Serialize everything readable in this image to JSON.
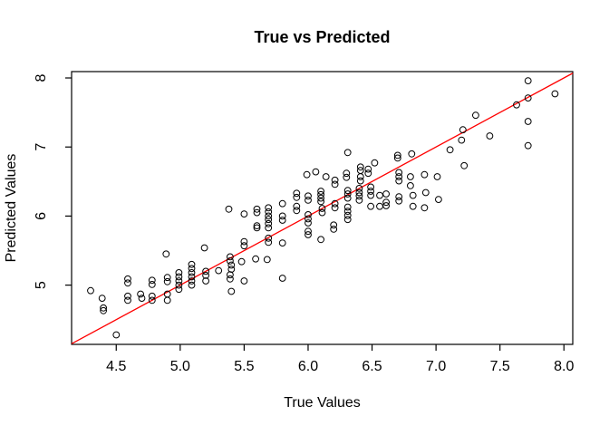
{
  "chart_data": {
    "type": "scatter",
    "title": "True vs Predicted",
    "xlabel": "True Values",
    "ylabel": "Predicted Values",
    "xlim": [
      4.151,
      8.069
    ],
    "ylim": [
      4.142,
      8.092
    ],
    "x_ticks": [
      4.5,
      5.0,
      5.5,
      6.0,
      6.5,
      7.0,
      7.5,
      8.0
    ],
    "x_tick_labels": [
      "4.5",
      "5.0",
      "5.5",
      "6.0",
      "6.5",
      "7.0",
      "7.5",
      "8.0"
    ],
    "y_ticks": [
      5,
      6,
      7,
      8
    ],
    "y_tick_labels": [
      "5",
      "6",
      "7",
      "8"
    ],
    "grid": false,
    "legend": "none",
    "marker": {
      "shape": "open-circle",
      "color": "#000000"
    },
    "reference_line": {
      "type": "identity (y = x)",
      "color": "#FF0000"
    },
    "colors": {
      "points": "#000000",
      "line": "#FF0000",
      "box": "#000000",
      "background": "#FFFFFF"
    },
    "points": [
      [
        4.3,
        4.92
      ],
      [
        4.39,
        4.81
      ],
      [
        4.4,
        4.67
      ],
      [
        4.4,
        4.63
      ],
      [
        4.5,
        4.28
      ],
      [
        4.59,
        5.09
      ],
      [
        4.59,
        5.03
      ],
      [
        4.59,
        4.84
      ],
      [
        4.59,
        4.78
      ],
      [
        4.69,
        4.87
      ],
      [
        4.7,
        4.81
      ],
      [
        4.78,
        5.07
      ],
      [
        4.78,
        5.01
      ],
      [
        4.78,
        4.84
      ],
      [
        4.78,
        4.78
      ],
      [
        4.89,
        5.45
      ],
      [
        4.9,
        5.11
      ],
      [
        4.9,
        5.05
      ],
      [
        4.9,
        4.87
      ],
      [
        4.9,
        4.78
      ],
      [
        4.99,
        5.18
      ],
      [
        4.99,
        5.12
      ],
      [
        4.99,
        5.06
      ],
      [
        4.99,
        5.0
      ],
      [
        4.99,
        4.94
      ],
      [
        5.09,
        5.3
      ],
      [
        5.09,
        5.24
      ],
      [
        5.09,
        5.18
      ],
      [
        5.09,
        5.12
      ],
      [
        5.09,
        5.06
      ],
      [
        5.09,
        5.0
      ],
      [
        5.19,
        5.54
      ],
      [
        5.2,
        5.2
      ],
      [
        5.2,
        5.14
      ],
      [
        5.2,
        5.06
      ],
      [
        5.3,
        5.21
      ],
      [
        5.39,
        5.41
      ],
      [
        5.39,
        5.35
      ],
      [
        5.4,
        5.29
      ],
      [
        5.4,
        5.23
      ],
      [
        5.39,
        5.15
      ],
      [
        5.39,
        5.09
      ],
      [
        5.4,
        4.91
      ],
      [
        5.38,
        6.1
      ],
      [
        5.48,
        5.34
      ],
      [
        5.5,
        6.03
      ],
      [
        5.5,
        5.63
      ],
      [
        5.5,
        5.57
      ],
      [
        5.5,
        5.06
      ],
      [
        5.6,
        6.1
      ],
      [
        5.6,
        6.05
      ],
      [
        5.6,
        5.86
      ],
      [
        5.6,
        5.83
      ],
      [
        5.59,
        5.38
      ],
      [
        5.69,
        6.12
      ],
      [
        5.69,
        6.06
      ],
      [
        5.69,
        6.0
      ],
      [
        5.69,
        5.95
      ],
      [
        5.69,
        5.89
      ],
      [
        5.69,
        5.83
      ],
      [
        5.69,
        5.68
      ],
      [
        5.69,
        5.62
      ],
      [
        5.68,
        5.37
      ],
      [
        5.8,
        6.18
      ],
      [
        5.8,
        6.0
      ],
      [
        5.8,
        5.94
      ],
      [
        5.8,
        5.61
      ],
      [
        5.8,
        5.1
      ],
      [
        5.91,
        6.33
      ],
      [
        5.91,
        6.27
      ],
      [
        5.91,
        6.14
      ],
      [
        5.91,
        6.08
      ],
      [
        5.99,
        6.6
      ],
      [
        6.0,
        6.29
      ],
      [
        6.0,
        6.23
      ],
      [
        6.0,
        6.02
      ],
      [
        6.0,
        5.96
      ],
      [
        6.0,
        5.9
      ],
      [
        6.0,
        5.78
      ],
      [
        6.0,
        5.73
      ],
      [
        6.06,
        6.64
      ],
      [
        6.1,
        5.66
      ],
      [
        6.14,
        6.57
      ],
      [
        6.1,
        6.36
      ],
      [
        6.1,
        6.31
      ],
      [
        6.1,
        6.26
      ],
      [
        6.1,
        6.21
      ],
      [
        6.11,
        6.11
      ],
      [
        6.11,
        6.05
      ],
      [
        6.21,
        6.52
      ],
      [
        6.21,
        6.46
      ],
      [
        6.21,
        6.18
      ],
      [
        6.21,
        6.12
      ],
      [
        6.2,
        5.87
      ],
      [
        6.2,
        5.81
      ],
      [
        6.31,
        6.92
      ],
      [
        6.3,
        6.62
      ],
      [
        6.3,
        6.56
      ],
      [
        6.31,
        6.37
      ],
      [
        6.31,
        6.32
      ],
      [
        6.31,
        6.26
      ],
      [
        6.31,
        6.13
      ],
      [
        6.31,
        6.07
      ],
      [
        6.31,
        6.01
      ],
      [
        6.31,
        5.95
      ],
      [
        6.41,
        6.71
      ],
      [
        6.41,
        6.66
      ],
      [
        6.41,
        6.57
      ],
      [
        6.41,
        6.51
      ],
      [
        6.4,
        6.4
      ],
      [
        6.4,
        6.34
      ],
      [
        6.4,
        6.29
      ],
      [
        6.4,
        6.23
      ],
      [
        6.47,
        6.68
      ],
      [
        6.47,
        6.62
      ],
      [
        6.52,
        6.77
      ],
      [
        6.49,
        6.42
      ],
      [
        6.49,
        6.36
      ],
      [
        6.49,
        6.3
      ],
      [
        6.49,
        6.14
      ],
      [
        6.56,
        6.3
      ],
      [
        6.56,
        6.14
      ],
      [
        6.61,
        6.32
      ],
      [
        6.61,
        6.2
      ],
      [
        6.61,
        6.15
      ],
      [
        6.7,
        6.88
      ],
      [
        6.7,
        6.84
      ],
      [
        6.71,
        6.63
      ],
      [
        6.71,
        6.57
      ],
      [
        6.71,
        6.51
      ],
      [
        6.71,
        6.28
      ],
      [
        6.71,
        6.22
      ],
      [
        6.8,
        6.57
      ],
      [
        6.8,
        6.44
      ],
      [
        6.82,
        6.3
      ],
      [
        6.82,
        6.14
      ],
      [
        6.81,
        6.9
      ],
      [
        6.91,
        6.6
      ],
      [
        6.92,
        6.34
      ],
      [
        6.91,
        6.12
      ],
      [
        7.01,
        6.57
      ],
      [
        7.02,
        6.24
      ],
      [
        7.11,
        6.96
      ],
      [
        7.2,
        7.1
      ],
      [
        7.21,
        7.25
      ],
      [
        7.22,
        6.73
      ],
      [
        7.31,
        7.46
      ],
      [
        7.42,
        7.16
      ],
      [
        7.63,
        7.61
      ],
      [
        7.72,
        7.96
      ],
      [
        7.72,
        7.71
      ],
      [
        7.72,
        7.37
      ],
      [
        7.72,
        7.02
      ],
      [
        7.93,
        7.77
      ]
    ]
  }
}
